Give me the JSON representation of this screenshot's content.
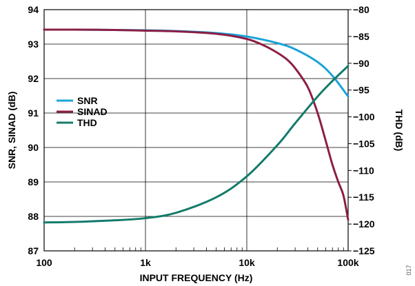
{
  "chart_data": {
    "type": "line",
    "xlabel": "INPUT FREQUENCY (Hz)",
    "ylabel_left": "SNR, SINAD (dB)",
    "ylabel_right": "THD (dB)",
    "x_scale": "log",
    "xlim": [
      100,
      100000
    ],
    "ylim_left": [
      87,
      94
    ],
    "ylim_right": [
      -125,
      -80
    ],
    "x_ticks": [
      {
        "value": 100,
        "label": "100"
      },
      {
        "value": 1000,
        "label": "1k"
      },
      {
        "value": 10000,
        "label": "10k"
      },
      {
        "value": 100000,
        "label": "100k"
      }
    ],
    "y_ticks_left": [
      "87",
      "88",
      "89",
      "90",
      "91",
      "92",
      "93",
      "94"
    ],
    "y_ticks_right": [
      "−80",
      "−85",
      "−90",
      "−95",
      "−100",
      "−105",
      "−110",
      "−115",
      "−120",
      "−125"
    ],
    "grid": true,
    "legend_position": "center-left",
    "figure_id": "017",
    "series": [
      {
        "name": "SNR",
        "axis": "left",
        "color": "#1AA3D8",
        "x": [
          100,
          200,
          500,
          1000,
          2000,
          5000,
          10000,
          20000,
          30000,
          50000,
          70000,
          100000
        ],
        "y": [
          93.42,
          93.42,
          93.41,
          93.4,
          93.38,
          93.32,
          93.22,
          93.03,
          92.85,
          92.48,
          92.08,
          91.48
        ]
      },
      {
        "name": "SINAD",
        "axis": "left",
        "color": "#8B1E45",
        "x": [
          100,
          200,
          500,
          1000,
          2000,
          5000,
          10000,
          15000,
          20000,
          25000,
          30000,
          40000,
          50000,
          60000,
          70000,
          80000,
          90000,
          100000
        ],
        "y": [
          93.42,
          93.42,
          93.41,
          93.39,
          93.37,
          93.3,
          93.15,
          92.95,
          92.75,
          92.55,
          92.3,
          91.75,
          91.0,
          90.2,
          89.5,
          89.0,
          88.6,
          87.9
        ]
      },
      {
        "name": "THD",
        "axis": "right",
        "color": "#137B6B",
        "x": [
          100,
          200,
          500,
          1000,
          2000,
          5000,
          10000,
          20000,
          30000,
          50000,
          70000,
          100000
        ],
        "y": [
          -119.7,
          -119.6,
          -119.3,
          -118.9,
          -117.9,
          -115.0,
          -111.1,
          -105.3,
          -101.2,
          -96.2,
          -93.3,
          -90.5
        ]
      }
    ]
  }
}
